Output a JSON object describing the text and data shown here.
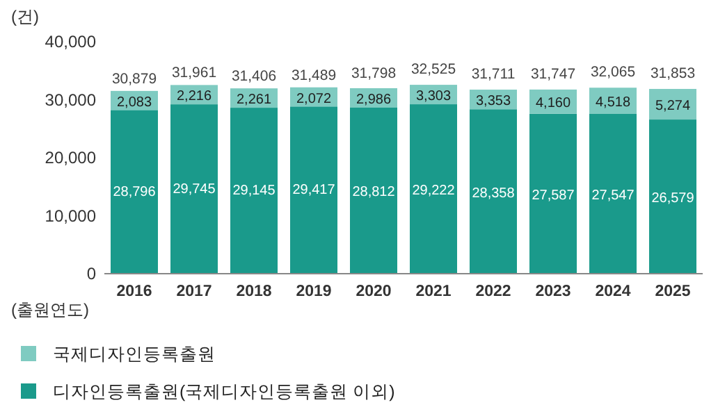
{
  "chart_data": {
    "type": "bar",
    "stacked": true,
    "ylabel": "(건)",
    "xlabel": "(출원연도)",
    "categories": [
      "2016",
      "2017",
      "2018",
      "2019",
      "2020",
      "2021",
      "2022",
      "2023",
      "2024",
      "2025"
    ],
    "series": [
      {
        "name": "디자인등록출원(국제디자인등록출원 이외)",
        "color": "#1a9a8b",
        "values": [
          28796,
          29745,
          29145,
          29417,
          28812,
          29222,
          28358,
          27587,
          27547,
          26579
        ],
        "value_labels": [
          "28,796",
          "29,745",
          "29,145",
          "29,417",
          "28,812",
          "29,222",
          "28,358",
          "27,587",
          "27,547",
          "26,579"
        ]
      },
      {
        "name": "국제디자인등록출원",
        "color": "#7fcbc1",
        "values": [
          2083,
          2216,
          2261,
          2072,
          2986,
          3303,
          3353,
          4160,
          4518,
          5274
        ],
        "value_labels": [
          "2,083",
          "2,216",
          "2,261",
          "2,072",
          "2,986",
          "3,303",
          "3,353",
          "4,160",
          "4,518",
          "5,274"
        ]
      }
    ],
    "totals": [
      "30,879",
      "31,961",
      "31,406",
      "31,489",
      "31,798",
      "32,525",
      "31,711",
      "31,747",
      "32,065",
      "31,853"
    ],
    "ylim": [
      0,
      40000
    ],
    "yticks": [
      0,
      {
        "value": 10000,
        "label": "10,000"
      },
      {
        "value": 20000,
        "label": "20,000"
      },
      {
        "value": 30000,
        "label": "30,000"
      },
      {
        "value": 40000,
        "label": "40,000"
      }
    ],
    "legend": "bottom",
    "grid": false
  }
}
